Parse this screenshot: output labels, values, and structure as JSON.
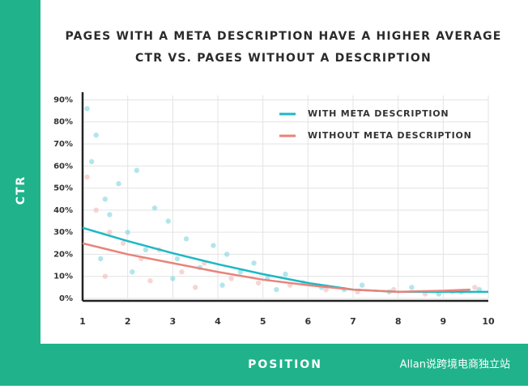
{
  "chart_data": {
    "type": "line",
    "title": "PAGES WITH A META DESCRIPTION HAVE A HIGHER AVERAGE",
    "subtitle": "CTR VS. PAGES WITHOUT A DESCRIPTION",
    "y_label": "CTR",
    "x_label": "POSITION",
    "watermark": "Allan说跨境电商独立站",
    "xlim": [
      1,
      10
    ],
    "xticks": [
      1,
      2,
      3,
      4,
      5,
      6,
      7,
      8,
      9,
      10
    ],
    "ylim": [
      0,
      92
    ],
    "yticks": [
      {
        "value": 0,
        "label": "0%"
      },
      {
        "value": 10,
        "label": "10%"
      },
      {
        "value": 20,
        "label": "20%"
      },
      {
        "value": 30,
        "label": "30%"
      },
      {
        "value": 40,
        "label": "40%"
      },
      {
        "value": 50,
        "label": "50%"
      },
      {
        "value": 60,
        "label": "60%"
      },
      {
        "value": 70,
        "label": "70%"
      },
      {
        "value": 80,
        "label": "80%"
      },
      {
        "value": 90,
        "label": "90%"
      }
    ],
    "grid": true,
    "legend": "top-right",
    "series": [
      {
        "type": "scatter",
        "color": "#7fd6dd",
        "x": [
          1.1,
          1.2,
          1.3,
          1.5,
          1.6,
          1.8,
          2.0,
          2.2,
          2.4,
          2.6,
          2.9,
          3.1,
          3.3,
          3.6,
          3.9,
          4.2,
          4.5,
          4.8,
          5.1,
          5.5,
          5.9,
          6.3,
          6.8,
          7.2,
          7.8,
          8.3,
          8.9,
          9.4,
          9.8,
          1.4,
          2.1,
          3.0,
          4.1,
          5.3
        ],
        "values": [
          86,
          62,
          74,
          45,
          38,
          52,
          30,
          58,
          22,
          41,
          35,
          18,
          27,
          14,
          24,
          20,
          12,
          16,
          9,
          11,
          7,
          5,
          4,
          6,
          3,
          5,
          2,
          3,
          4,
          18,
          12,
          9,
          6,
          4
        ]
      },
      {
        "type": "scatter",
        "color": "#f2b9b4",
        "x": [
          1.1,
          1.3,
          1.6,
          1.9,
          2.3,
          2.7,
          3.2,
          3.7,
          4.3,
          4.9,
          5.6,
          6.4,
          7.1,
          7.9,
          8.6,
          9.2,
          9.7,
          1.5,
          2.5,
          3.5
        ],
        "values": [
          55,
          40,
          30,
          25,
          18,
          22,
          12,
          16,
          9,
          7,
          6,
          4,
          3,
          4,
          2,
          3,
          5,
          10,
          8,
          5
        ]
      },
      {
        "type": "line",
        "name": "WITH META DESCRIPTION",
        "color": "#1cb8c4",
        "x": [
          1,
          2,
          3,
          4,
          5,
          6,
          7,
          8,
          9,
          10
        ],
        "values": [
          32,
          26,
          20.5,
          15.5,
          11,
          7,
          4,
          3,
          3,
          3
        ]
      },
      {
        "type": "line",
        "name": "WITHOUT META DESCRIPTION",
        "color": "#e8837a",
        "x": [
          1,
          2,
          3,
          4,
          5,
          6,
          7,
          8,
          9,
          9.6
        ],
        "values": [
          25,
          20,
          16,
          12,
          8.5,
          6,
          4,
          3,
          3.5,
          4
        ]
      }
    ]
  }
}
